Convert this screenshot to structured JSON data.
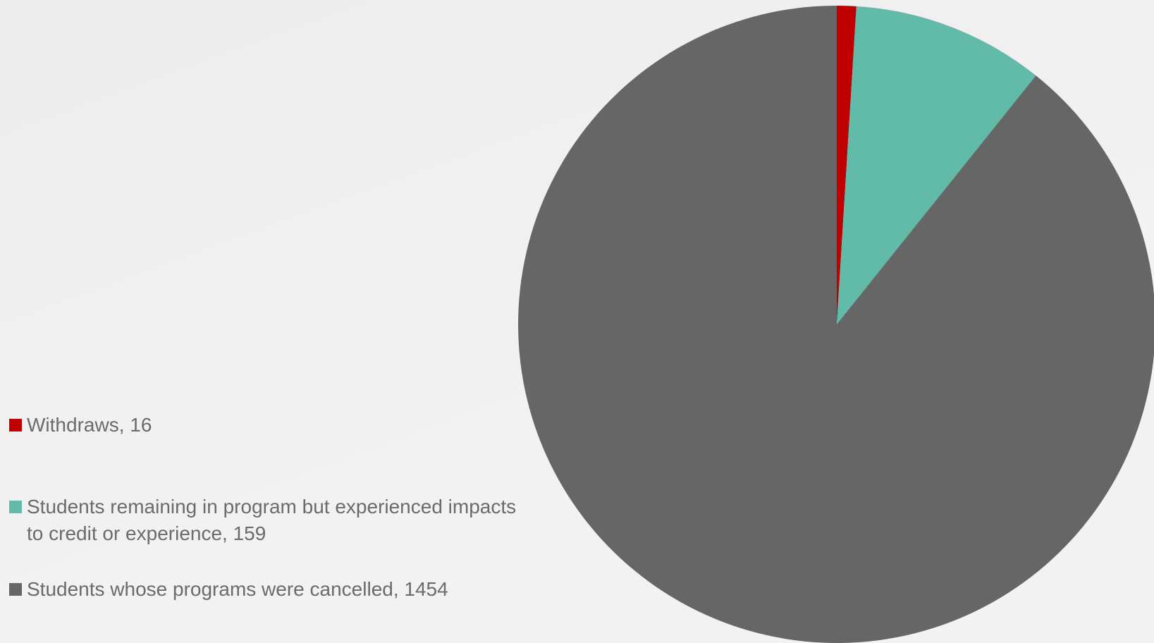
{
  "chart_data": {
    "type": "pie",
    "title": "",
    "legend_position": "bottom-left",
    "start_angle_deg": 0,
    "direction": "clockwise",
    "slices": [
      {
        "label": "Withdraws",
        "value": 16,
        "color": "#c00000",
        "legend_text": "Withdraws, 16"
      },
      {
        "label": "Students remaining in program but experienced impacts to credit or experience",
        "value": 159,
        "color": "#62bba9",
        "legend_text": "Students remaining in program but experienced impacts to credit or experience, 159"
      },
      {
        "label": "Students whose programs were cancelled",
        "value": 1454,
        "color": "#666666",
        "legend_text": "Students whose programs were cancelled, 1454"
      }
    ]
  }
}
